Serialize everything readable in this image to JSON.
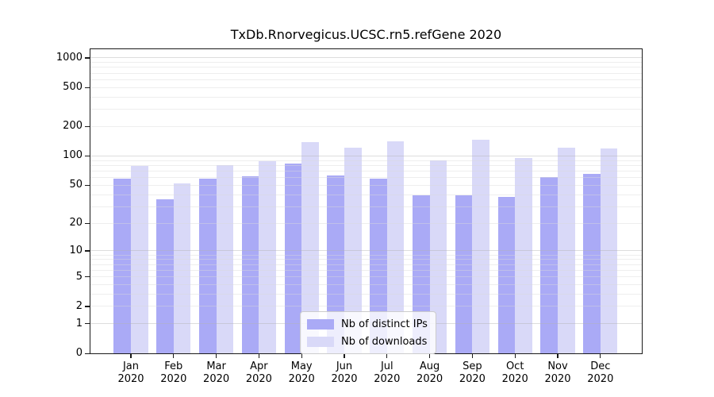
{
  "chart_data": {
    "type": "bar",
    "title": "TxDb.Rnorvegicus.UCSC.rn5.refGene 2020",
    "categories": [
      "Jan",
      "Feb",
      "Mar",
      "Apr",
      "May",
      "Jun",
      "Jul",
      "Aug",
      "Sep",
      "Oct",
      "Nov",
      "Dec"
    ],
    "x_year": "2020",
    "series": [
      {
        "name": "Nb of distinct IPs",
        "color": "#aaaaf6",
        "values": [
          58,
          36,
          58,
          62,
          83,
          63,
          58,
          39,
          39,
          38,
          61,
          66
        ]
      },
      {
        "name": "Nb of downloads",
        "color": "#d9d9f8",
        "values": [
          79,
          52,
          80,
          88,
          138,
          121,
          141,
          91,
          146,
          96,
          121,
          119
        ]
      }
    ],
    "yscale": "log1p",
    "ylim": [
      0,
      1250
    ],
    "y_tick_values": [
      1000,
      500,
      200,
      100,
      50,
      20,
      10,
      5,
      2,
      1,
      0
    ],
    "y_major_grid_values": [
      1,
      10,
      100,
      1000
    ],
    "y_minor_grid_values": [
      2,
      3,
      4,
      5,
      6,
      7,
      8,
      9,
      20,
      30,
      40,
      50,
      60,
      70,
      80,
      90,
      200,
      300,
      400,
      500,
      600,
      700,
      800,
      900
    ],
    "grid": true,
    "legend_position": "lower center",
    "xlabel": "",
    "ylabel": ""
  },
  "legend": {
    "items": [
      {
        "label": "Nb of distinct IPs"
      },
      {
        "label": "Nb of downloads"
      }
    ]
  },
  "colors": {
    "bar_distinct_ips": "#aaaaf6",
    "bar_downloads": "#d9d9f8",
    "axis": "#1a1a1a",
    "grid_major": "#b3b3b3",
    "grid_minor": "#d9d9d9",
    "legend_border": "#cccccc",
    "background": "#ffffff",
    "text": "#000000"
  }
}
